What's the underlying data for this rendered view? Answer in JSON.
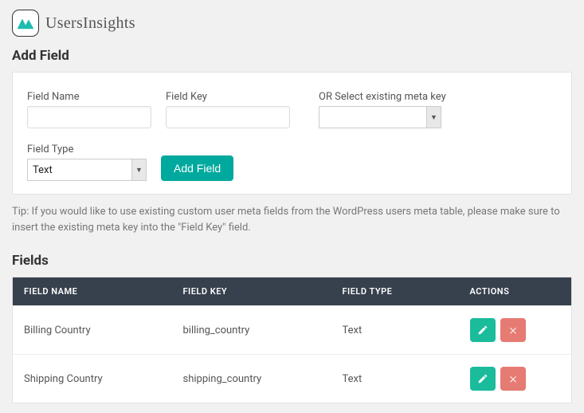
{
  "brand": "UsersInsights",
  "section_add_title": "Add Field",
  "section_list_title": "Fields",
  "form": {
    "name_label": "Field Name",
    "key_label": "Field Key",
    "meta_label": "OR Select existing meta key",
    "type_label": "Field Type",
    "type_value": "Text",
    "submit_label": "Add Field"
  },
  "tip_text": "Tip: If you would like to use existing custom user meta fields from the WordPress users meta table, please make sure to insert the existing meta key into the \"Field Key\" field.",
  "table": {
    "headers": {
      "name": "Field Name",
      "key": "Field Key",
      "type": "Field Type",
      "actions": "Actions"
    },
    "rows": [
      {
        "name": "Billing Country",
        "key": "billing_country",
        "type": "Text"
      },
      {
        "name": "Shipping Country",
        "key": "shipping_country",
        "type": "Text"
      }
    ]
  },
  "colors": {
    "accent": "#00a99d",
    "header_bg": "#37414d",
    "danger": "#e67b73",
    "success": "#1abc9c"
  }
}
